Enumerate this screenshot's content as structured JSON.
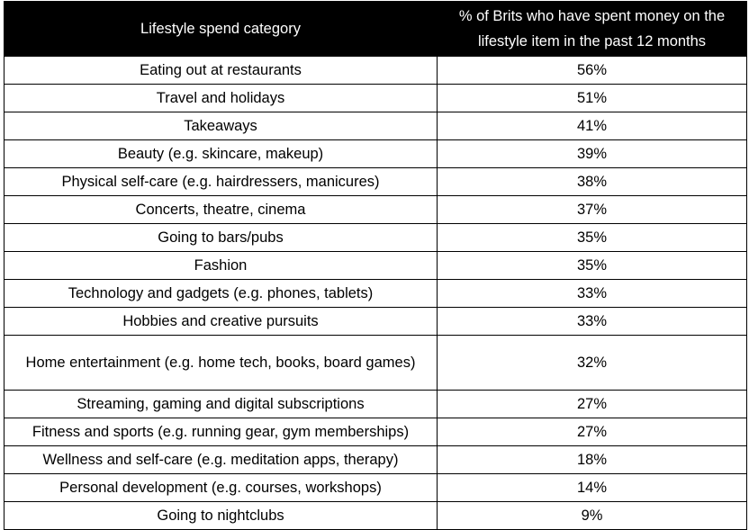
{
  "table": {
    "headers": {
      "category": "Lifestyle spend category",
      "percent": "% of Brits who have spent money on the lifestyle item in the past 12 months"
    },
    "rows": [
      {
        "category": "Eating out at restaurants",
        "percent": "56%"
      },
      {
        "category": "Travel and holidays",
        "percent": "51%"
      },
      {
        "category": "Takeaways",
        "percent": "41%"
      },
      {
        "category": "Beauty (e.g. skincare, makeup)",
        "percent": "39%"
      },
      {
        "category": "Physical self-care (e.g. hairdressers, manicures)",
        "percent": "38%"
      },
      {
        "category": "Concerts, theatre, cinema",
        "percent": "37%"
      },
      {
        "category": "Going to bars/pubs",
        "percent": "35%"
      },
      {
        "category": "Fashion",
        "percent": "35%"
      },
      {
        "category": "Technology and gadgets (e.g. phones, tablets)",
        "percent": "33%"
      },
      {
        "category": "Hobbies and creative pursuits",
        "percent": "33%"
      },
      {
        "category": "Home entertainment (e.g. home tech, books, board games)",
        "percent": "32%"
      },
      {
        "category": "Streaming, gaming and digital subscriptions",
        "percent": "27%"
      },
      {
        "category": "Fitness and sports (e.g. running gear, gym memberships)",
        "percent": "27%"
      },
      {
        "category": "Wellness and self-care (e.g. meditation apps, therapy)",
        "percent": "18%"
      },
      {
        "category": "Personal development (e.g. courses, workshops)",
        "percent": "14%"
      },
      {
        "category": "Going to nightclubs",
        "percent": "9%"
      }
    ]
  },
  "colors": {
    "header_background": "#000000",
    "header_text": "#ffffff",
    "border": "#000000",
    "body_background": "#ffffff"
  }
}
